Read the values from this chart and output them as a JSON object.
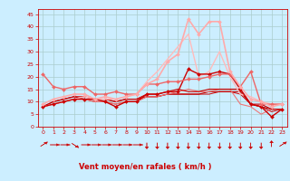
{
  "x": [
    0,
    1,
    2,
    3,
    4,
    5,
    6,
    7,
    8,
    9,
    10,
    11,
    12,
    13,
    14,
    15,
    16,
    17,
    18,
    19,
    20,
    21,
    22,
    23
  ],
  "background_color": "#cceeff",
  "grid_color": "#aacccc",
  "xlabel": "Vent moyen/en rafales ( km/h )",
  "xlabel_color": "#cc0000",
  "tick_color": "#cc0000",
  "ylim": [
    0,
    47
  ],
  "yticks": [
    0,
    5,
    10,
    15,
    20,
    25,
    30,
    35,
    40,
    45
  ],
  "lines": [
    {
      "y": [
        8,
        9,
        10,
        11,
        11,
        11,
        10,
        8,
        10,
        10,
        13,
        13,
        14,
        14,
        23,
        21,
        21,
        22,
        21,
        15,
        9,
        8,
        4,
        7
      ],
      "color": "#cc0000",
      "lw": 1.0,
      "marker": "D",
      "ms": 2.0,
      "zorder": 5
    },
    {
      "y": [
        8,
        10,
        11,
        12,
        12,
        11,
        11,
        10,
        11,
        11,
        13,
        13,
        14,
        15,
        14,
        14,
        15,
        15,
        15,
        15,
        9,
        9,
        7,
        7
      ],
      "color": "#cc0000",
      "lw": 0.8,
      "marker": null,
      "ms": 0,
      "zorder": 4
    },
    {
      "y": [
        8,
        10,
        11,
        12,
        11,
        11,
        11,
        10,
        11,
        11,
        12,
        12,
        13,
        13,
        13,
        13,
        14,
        14,
        14,
        14,
        9,
        8,
        7,
        7
      ],
      "color": "#bb0000",
      "lw": 0.8,
      "marker": null,
      "ms": 0,
      "zorder": 3
    },
    {
      "y": [
        8,
        9,
        10,
        11,
        11,
        10,
        10,
        9,
        10,
        10,
        12,
        12,
        13,
        13,
        13,
        13,
        13,
        14,
        14,
        13,
        9,
        8,
        6,
        7
      ],
      "color": "#cc0000",
      "lw": 0.7,
      "marker": null,
      "ms": 0,
      "zorder": 3
    },
    {
      "y": [
        21,
        16,
        15,
        16,
        16,
        13,
        13,
        14,
        13,
        13,
        17,
        17,
        18,
        18,
        19,
        19,
        20,
        21,
        21,
        16,
        22,
        9,
        9,
        9
      ],
      "color": "#ee6666",
      "lw": 1.0,
      "marker": "D",
      "ms": 2.0,
      "zorder": 5
    },
    {
      "y": [
        8,
        9,
        10,
        11,
        11,
        10,
        10,
        9,
        10,
        10,
        12,
        12,
        13,
        14,
        15,
        14,
        14,
        15,
        15,
        9,
        8,
        5,
        7,
        7
      ],
      "color": "#ee7777",
      "lw": 0.8,
      "marker": null,
      "ms": 0,
      "zorder": 3
    },
    {
      "y": [
        9,
        11,
        12,
        13,
        13,
        11,
        12,
        11,
        12,
        13,
        17,
        19,
        26,
        29,
        43,
        37,
        42,
        42,
        22,
        16,
        11,
        10,
        8,
        9
      ],
      "color": "#ffaaaa",
      "lw": 1.2,
      "marker": "D",
      "ms": 2.0,
      "zorder": 6
    },
    {
      "y": [
        8,
        9,
        10,
        11,
        12,
        11,
        11,
        11,
        12,
        13,
        18,
        22,
        27,
        32,
        37,
        20,
        22,
        30,
        20,
        13,
        12,
        10,
        9,
        9
      ],
      "color": "#ffbbbb",
      "lw": 1.0,
      "marker": null,
      "ms": 0,
      "zorder": 4
    }
  ],
  "wind_angles": [
    45,
    0,
    0,
    -45,
    0,
    0,
    0,
    0,
    0,
    0,
    -90,
    -90,
    -90,
    -90,
    -90,
    -90,
    -90,
    -90,
    -90,
    -90,
    -90,
    -90,
    90,
    45
  ],
  "arrow_color": "#cc0000",
  "figsize": [
    3.2,
    2.0
  ],
  "dpi": 100
}
